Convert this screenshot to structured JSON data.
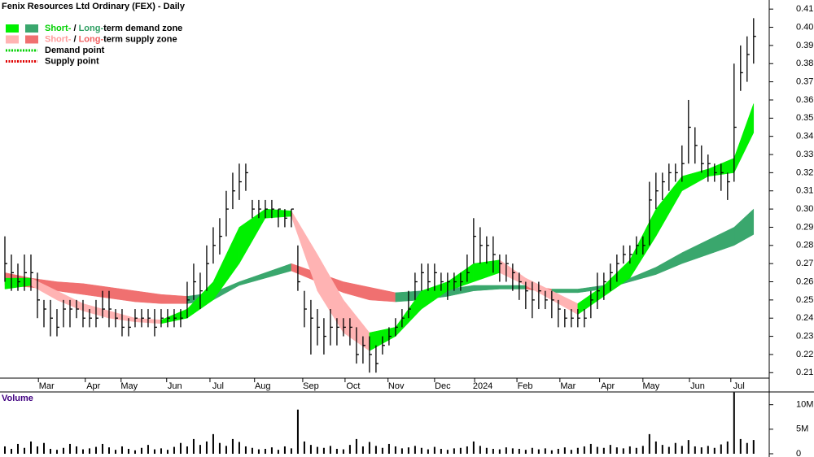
{
  "chart_data": [
    {
      "type": "ohlc",
      "title": "Fenix Resources Ltd Ordinary (FEX) - Daily",
      "legend": [
        {
          "parts": [
            "Short-",
            " / ",
            "Long-",
            "term demand zone"
          ],
          "part_colors": [
            "#00d000",
            "#000000",
            "#2e9e62",
            "#000000"
          ],
          "swatches": [
            "#00f000",
            "#3aa76d"
          ]
        },
        {
          "parts": [
            "Short-",
            " / ",
            "Long-",
            "term supply zone"
          ],
          "part_colors": [
            "#ff9a9a",
            "#000000",
            "#f06060",
            "#000000"
          ],
          "swatches": [
            "#ffb3b3",
            "#f07070"
          ]
        },
        {
          "parts": [
            "Demand point"
          ],
          "part_colors": [
            "#000000"
          ],
          "dotted": "#00d000"
        },
        {
          "parts": [
            "Supply point"
          ],
          "part_colors": [
            "#000000"
          ],
          "dotted": "#e00000"
        }
      ],
      "xlim": [
        -0.75,
        117.4
      ],
      "xticks": [
        {
          "value": 6.4,
          "label": "Mar"
        },
        {
          "value": 13.6,
          "label": "Apr"
        },
        {
          "value": 19.1,
          "label": "May"
        },
        {
          "value": 26.1,
          "label": "Jun"
        },
        {
          "value": 32.75,
          "label": "Jul"
        },
        {
          "value": 39.6,
          "label": "Aug"
        },
        {
          "value": 47,
          "label": "Sep"
        },
        {
          "value": 53.5,
          "label": "Oct"
        },
        {
          "value": 60.1,
          "label": "Nov"
        },
        {
          "value": 67.25,
          "label": "Dec"
        },
        {
          "value": 73.4,
          "label": "2024"
        },
        {
          "value": 79.9,
          "label": "Feb"
        },
        {
          "value": 86.5,
          "label": "Mar"
        },
        {
          "value": 92.6,
          "label": "Apr"
        },
        {
          "value": 99.25,
          "label": "May"
        },
        {
          "value": 106.4,
          "label": "Jun"
        },
        {
          "value": 112.75,
          "label": "Jul"
        }
      ],
      "ylim": [
        0.207,
        0.415
      ],
      "yticks": [
        0.21,
        0.22,
        0.23,
        0.24,
        0.25,
        0.26,
        0.27,
        0.28,
        0.29,
        {
          "value": 0.3,
          "label": "0.30"
        },
        0.31,
        0.32,
        0.33,
        0.34,
        0.35,
        0.36,
        0.37,
        0.38,
        0.39,
        {
          "value": 0.4,
          "label": "0.40"
        },
        0.41
      ],
      "bar_color": "#000000",
      "high": [
        0.285,
        0.275,
        0.27,
        0.275,
        0.275,
        0.265,
        0.25,
        0.25,
        0.245,
        0.25,
        0.25,
        0.25,
        0.25,
        0.245,
        0.25,
        0.255,
        0.255,
        0.245,
        0.245,
        0.24,
        0.245,
        0.245,
        0.245,
        0.245,
        0.245,
        0.245,
        0.245,
        0.245,
        0.26,
        0.27,
        0.265,
        0.28,
        0.29,
        0.295,
        0.31,
        0.32,
        0.325,
        0.325,
        0.305,
        0.305,
        0.305,
        0.305,
        0.3,
        0.3,
        0.3,
        0.28,
        0.255,
        0.25,
        0.245,
        0.24,
        0.245,
        0.24,
        0.24,
        0.24,
        0.235,
        0.23,
        0.23,
        0.225,
        0.23,
        0.235,
        0.24,
        0.245,
        0.255,
        0.265,
        0.27,
        0.27,
        0.27,
        0.265,
        0.265,
        0.265,
        0.265,
        0.275,
        0.295,
        0.29,
        0.285,
        0.285,
        0.275,
        0.275,
        0.27,
        0.265,
        0.26,
        0.26,
        0.26,
        0.255,
        0.255,
        0.25,
        0.245,
        0.245,
        0.245,
        0.245,
        0.255,
        0.265,
        0.265,
        0.27,
        0.275,
        0.28,
        0.28,
        0.285,
        0.285,
        0.315,
        0.32,
        0.32,
        0.325,
        0.325,
        0.335,
        0.36,
        0.345,
        0.335,
        0.33,
        0.325,
        0.325,
        0.32,
        0.38,
        0.39,
        0.395,
        0.405
      ],
      "low": [
        0.26,
        0.255,
        0.255,
        0.255,
        0.255,
        0.24,
        0.235,
        0.23,
        0.23,
        0.235,
        0.235,
        0.24,
        0.235,
        0.235,
        0.235,
        0.24,
        0.235,
        0.235,
        0.23,
        0.23,
        0.235,
        0.235,
        0.235,
        0.23,
        0.235,
        0.235,
        0.235,
        0.235,
        0.24,
        0.25,
        0.245,
        0.255,
        0.27,
        0.275,
        0.285,
        0.3,
        0.305,
        0.31,
        0.295,
        0.295,
        0.295,
        0.295,
        0.29,
        0.29,
        0.29,
        0.255,
        0.235,
        0.22,
        0.225,
        0.22,
        0.225,
        0.225,
        0.23,
        0.225,
        0.215,
        0.215,
        0.21,
        0.21,
        0.22,
        0.225,
        0.23,
        0.235,
        0.24,
        0.25,
        0.255,
        0.255,
        0.255,
        0.255,
        0.25,
        0.255,
        0.255,
        0.26,
        0.27,
        0.27,
        0.27,
        0.265,
        0.26,
        0.26,
        0.255,
        0.25,
        0.245,
        0.24,
        0.245,
        0.245,
        0.24,
        0.235,
        0.235,
        0.235,
        0.235,
        0.235,
        0.24,
        0.245,
        0.25,
        0.255,
        0.26,
        0.27,
        0.27,
        0.275,
        0.275,
        0.28,
        0.3,
        0.305,
        0.31,
        0.315,
        0.315,
        0.325,
        0.325,
        0.32,
        0.315,
        0.315,
        0.31,
        0.305,
        0.315,
        0.365,
        0.37,
        0.38
      ],
      "close": [
        0.27,
        0.265,
        0.26,
        0.265,
        0.265,
        0.25,
        0.245,
        0.24,
        0.235,
        0.245,
        0.245,
        0.245,
        0.24,
        0.24,
        0.24,
        0.245,
        0.245,
        0.24,
        0.235,
        0.235,
        0.24,
        0.24,
        0.24,
        0.235,
        0.24,
        0.24,
        0.24,
        0.24,
        0.25,
        0.26,
        0.255,
        0.27,
        0.28,
        0.285,
        0.3,
        0.31,
        0.315,
        0.32,
        0.3,
        0.3,
        0.3,
        0.3,
        0.3,
        0.295,
        0.3,
        0.26,
        0.245,
        0.24,
        0.235,
        0.23,
        0.235,
        0.235,
        0.235,
        0.235,
        0.22,
        0.225,
        0.22,
        0.215,
        0.225,
        0.23,
        0.235,
        0.24,
        0.245,
        0.26,
        0.265,
        0.26,
        0.265,
        0.26,
        0.26,
        0.26,
        0.26,
        0.265,
        0.285,
        0.28,
        0.28,
        0.275,
        0.27,
        0.27,
        0.265,
        0.26,
        0.255,
        0.25,
        0.255,
        0.25,
        0.25,
        0.245,
        0.24,
        0.24,
        0.24,
        0.24,
        0.25,
        0.255,
        0.26,
        0.265,
        0.27,
        0.275,
        0.275,
        0.28,
        0.28,
        0.305,
        0.31,
        0.315,
        0.32,
        0.32,
        0.325,
        0.345,
        0.335,
        0.325,
        0.325,
        0.32,
        0.32,
        0.315,
        0.345,
        0.375,
        0.385,
        0.395
      ],
      "zones": [
        {
          "x": [
            0,
            4,
            8,
            12,
            16,
            20,
            24,
            28,
            32,
            36,
            40,
            44,
            48,
            52,
            56,
            60,
            64,
            68,
            72,
            76,
            80,
            84,
            88,
            92,
            96,
            100,
            104,
            108,
            112,
            115
          ],
          "upper": [
            0.265,
            0.262,
            0.26,
            0.259,
            0.257,
            0.255,
            0.253,
            0.252,
            0.254,
            0.26,
            0.265,
            0.27,
            0.265,
            0.26,
            0.257,
            0.254,
            0.255,
            0.256,
            0.258,
            0.258,
            0.258,
            0.256,
            0.256,
            0.258,
            0.262,
            0.268,
            0.276,
            0.283,
            0.29,
            0.3
          ],
          "lower": [
            0.258,
            0.257,
            0.255,
            0.253,
            0.251,
            0.249,
            0.248,
            0.248,
            0.25,
            0.258,
            0.262,
            0.266,
            0.26,
            0.254,
            0.25,
            0.249,
            0.25,
            0.252,
            0.255,
            0.256,
            0.256,
            0.254,
            0.254,
            0.256,
            0.26,
            0.264,
            0.27,
            0.275,
            0.28,
            0.286
          ],
          "rising_color": "#3aa76d",
          "falling_color": "#f07070"
        },
        {
          "x": [
            0,
            4,
            8,
            12,
            16,
            20,
            24,
            28,
            32,
            36,
            40,
            44,
            48,
            52,
            56,
            60,
            64,
            68,
            72,
            76,
            80,
            84,
            88,
            92,
            96,
            100,
            104,
            108,
            112,
            115
          ],
          "upper": [
            0.262,
            0.262,
            0.255,
            0.248,
            0.244,
            0.24,
            0.239,
            0.245,
            0.26,
            0.29,
            0.3,
            0.299,
            0.275,
            0.25,
            0.232,
            0.235,
            0.255,
            0.26,
            0.27,
            0.272,
            0.262,
            0.255,
            0.248,
            0.258,
            0.272,
            0.3,
            0.318,
            0.322,
            0.328,
            0.358
          ],
          "lower": [
            0.256,
            0.258,
            0.25,
            0.244,
            0.24,
            0.238,
            0.237,
            0.24,
            0.25,
            0.27,
            0.295,
            0.296,
            0.255,
            0.232,
            0.222,
            0.23,
            0.245,
            0.255,
            0.26,
            0.265,
            0.258,
            0.25,
            0.242,
            0.252,
            0.262,
            0.285,
            0.31,
            0.318,
            0.32,
            0.342
          ],
          "rising_color": "#00f000",
          "falling_color": "#ffb3b3"
        }
      ]
    },
    {
      "type": "bar",
      "title": "Volume",
      "color": "#000000",
      "ylim": [
        0,
        12.6
      ],
      "yticks": [
        {
          "value": 10,
          "label": "10M"
        },
        {
          "value": 5,
          "label": "5M"
        },
        0
      ],
      "values": [
        1.5,
        1,
        2,
        1.2,
        2.5,
        1.5,
        2.2,
        1,
        0.8,
        1.2,
        2,
        1.5,
        0.9,
        1.1,
        1.4,
        2,
        1.3,
        0.8,
        1.5,
        1,
        0.7,
        1.2,
        1.8,
        0.9,
        1.1,
        0.8,
        1.4,
        2.2,
        1.5,
        3,
        1.8,
        2.5,
        4,
        2.2,
        1.6,
        3,
        2.4,
        1.5,
        1.2,
        0.9,
        1,
        1.3,
        0.8,
        1.5,
        1.1,
        9,
        2.5,
        1.8,
        1.4,
        1.2,
        1.6,
        1,
        0.9,
        1.8,
        3,
        1.5,
        2.4,
        1.6,
        1.2,
        2,
        1.5,
        1.1,
        1.3,
        1.6,
        1.2,
        0.9,
        1.4,
        1,
        0.8,
        1.1,
        1.2,
        1.5,
        2.5,
        1.6,
        1.2,
        1,
        0.9,
        1.3,
        1.1,
        1,
        0.8,
        1.2,
        0.9,
        1.1,
        0.7,
        1,
        1.3,
        0.8,
        1.2,
        1.5,
        2,
        1.4,
        1.2,
        1.8,
        1.3,
        1.1,
        1.5,
        1.2,
        1.6,
        4,
        2.5,
        1.8,
        1.4,
        2.2,
        1.6,
        2.8,
        1.5,
        1.3,
        1.6,
        1.2,
        1.9,
        2.5,
        12.5,
        3,
        2.2,
        2.8
      ]
    }
  ]
}
